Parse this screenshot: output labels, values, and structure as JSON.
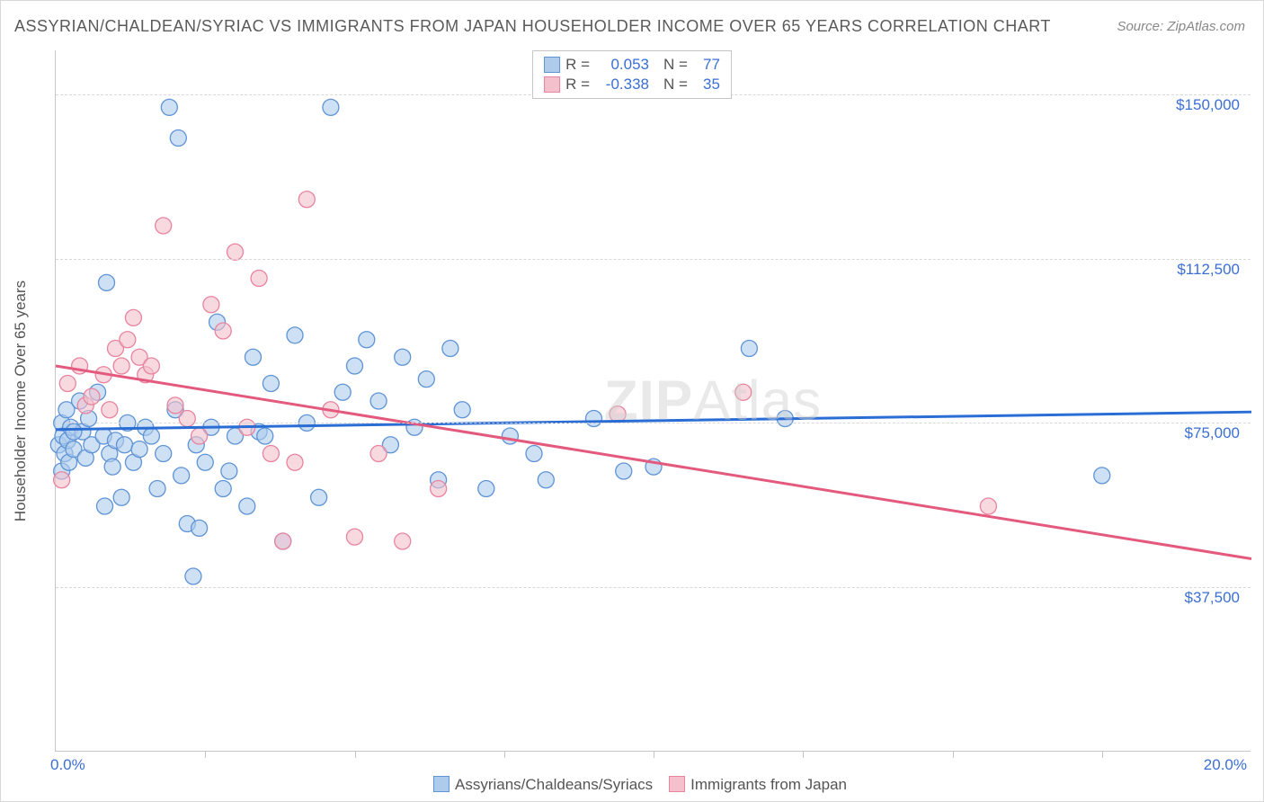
{
  "title": "ASSYRIAN/CHALDEAN/SYRIAC VS IMMIGRANTS FROM JAPAN HOUSEHOLDER INCOME OVER 65 YEARS CORRELATION CHART",
  "source": "Source: ZipAtlas.com",
  "watermark_zip": "ZIP",
  "watermark_atlas": "Atlas",
  "y_axis": {
    "label": "Householder Income Over 65 years",
    "ticks": [
      {
        "value": 37500,
        "label": "$37,500"
      },
      {
        "value": 75000,
        "label": "$75,000"
      },
      {
        "value": 112500,
        "label": "$112,500"
      },
      {
        "value": 150000,
        "label": "$150,000"
      }
    ],
    "min": 0,
    "max": 160000,
    "label_fontsize": 17,
    "label_color": "#555555",
    "tick_color": "#3b6fd4"
  },
  "x_axis": {
    "min": 0,
    "max": 20.0,
    "min_label": "0.0%",
    "max_label": "20.0%",
    "inner_ticks": [
      2.5,
      5.0,
      7.5,
      10.0,
      12.5,
      15.0,
      17.5
    ],
    "tick_color": "#3b6fd4"
  },
  "grid_color": "#d8d8d8",
  "background_color": "#ffffff",
  "series": [
    {
      "name": "Assyrians/Chaldeans/Syriacs",
      "fill": "#aecbec",
      "stroke": "#5f94d6",
      "fill_opacity": 0.6,
      "marker_radius": 9,
      "trend": {
        "y_at_xmin": 73500,
        "y_at_xmax": 77500,
        "color": "#2a6dd4",
        "width": 3
      },
      "stats": {
        "R_label": "R =",
        "R": "0.053",
        "N_label": "N =",
        "N": "77"
      },
      "points": [
        [
          0.05,
          70000
        ],
        [
          0.1,
          75000
        ],
        [
          0.1,
          64000
        ],
        [
          0.12,
          72000
        ],
        [
          0.15,
          68000
        ],
        [
          0.18,
          78000
        ],
        [
          0.2,
          71000
        ],
        [
          0.22,
          66000
        ],
        [
          0.25,
          74000
        ],
        [
          0.3,
          69000
        ],
        [
          0.4,
          80000
        ],
        [
          0.45,
          73000
        ],
        [
          0.5,
          67000
        ],
        [
          0.55,
          76000
        ],
        [
          0.6,
          70000
        ],
        [
          0.7,
          82000
        ],
        [
          0.8,
          72000
        ],
        [
          0.82,
          56000
        ],
        [
          0.85,
          107000
        ],
        [
          0.9,
          68000
        ],
        [
          0.95,
          65000
        ],
        [
          1.0,
          71000
        ],
        [
          1.1,
          58000
        ],
        [
          1.15,
          70000
        ],
        [
          1.2,
          75000
        ],
        [
          1.3,
          66000
        ],
        [
          1.4,
          69000
        ],
        [
          1.5,
          74000
        ],
        [
          1.6,
          72000
        ],
        [
          1.7,
          60000
        ],
        [
          1.8,
          68000
        ],
        [
          1.9,
          147000
        ],
        [
          2.0,
          78000
        ],
        [
          2.05,
          140000
        ],
        [
          2.1,
          63000
        ],
        [
          2.2,
          52000
        ],
        [
          2.3,
          40000
        ],
        [
          2.35,
          70000
        ],
        [
          2.4,
          51000
        ],
        [
          2.5,
          66000
        ],
        [
          2.6,
          74000
        ],
        [
          2.7,
          98000
        ],
        [
          2.8,
          60000
        ],
        [
          2.9,
          64000
        ],
        [
          3.0,
          72000
        ],
        [
          3.2,
          56000
        ],
        [
          3.3,
          90000
        ],
        [
          3.4,
          73000
        ],
        [
          3.5,
          72000
        ],
        [
          3.6,
          84000
        ],
        [
          3.8,
          48000
        ],
        [
          4.0,
          95000
        ],
        [
          4.2,
          75000
        ],
        [
          4.4,
          58000
        ],
        [
          4.6,
          147000
        ],
        [
          4.8,
          82000
        ],
        [
          5.0,
          88000
        ],
        [
          5.2,
          94000
        ],
        [
          5.4,
          80000
        ],
        [
          5.6,
          70000
        ],
        [
          5.8,
          90000
        ],
        [
          6.0,
          74000
        ],
        [
          6.2,
          85000
        ],
        [
          6.4,
          62000
        ],
        [
          6.6,
          92000
        ],
        [
          6.8,
          78000
        ],
        [
          7.2,
          60000
        ],
        [
          7.6,
          72000
        ],
        [
          8.0,
          68000
        ],
        [
          8.2,
          62000
        ],
        [
          9.0,
          76000
        ],
        [
          9.5,
          64000
        ],
        [
          10.0,
          65000
        ],
        [
          11.6,
          92000
        ],
        [
          12.2,
          76000
        ],
        [
          17.5,
          63000
        ],
        [
          0.3,
          73000
        ]
      ]
    },
    {
      "name": "Immigrants from Japan",
      "fill": "#f4c0cc",
      "stroke": "#e8849f",
      "fill_opacity": 0.6,
      "marker_radius": 9,
      "trend": {
        "y_at_xmin": 88000,
        "y_at_xmax": 44000,
        "color": "#e35a7e",
        "width": 3
      },
      "stats": {
        "R_label": "R =",
        "R": "-0.338",
        "N_label": "N =",
        "N": "35"
      },
      "points": [
        [
          0.1,
          62000
        ],
        [
          0.2,
          84000
        ],
        [
          0.4,
          88000
        ],
        [
          0.5,
          79000
        ],
        [
          0.6,
          81000
        ],
        [
          0.8,
          86000
        ],
        [
          0.9,
          78000
        ],
        [
          1.0,
          92000
        ],
        [
          1.1,
          88000
        ],
        [
          1.2,
          94000
        ],
        [
          1.3,
          99000
        ],
        [
          1.4,
          90000
        ],
        [
          1.5,
          86000
        ],
        [
          1.6,
          88000
        ],
        [
          1.8,
          120000
        ],
        [
          2.0,
          79000
        ],
        [
          2.2,
          76000
        ],
        [
          2.4,
          72000
        ],
        [
          2.6,
          102000
        ],
        [
          2.8,
          96000
        ],
        [
          3.0,
          114000
        ],
        [
          3.2,
          74000
        ],
        [
          3.4,
          108000
        ],
        [
          3.6,
          68000
        ],
        [
          3.8,
          48000
        ],
        [
          4.0,
          66000
        ],
        [
          4.2,
          126000
        ],
        [
          4.6,
          78000
        ],
        [
          5.0,
          49000
        ],
        [
          5.4,
          68000
        ],
        [
          5.8,
          48000
        ],
        [
          6.4,
          60000
        ],
        [
          9.4,
          77000
        ],
        [
          11.5,
          82000
        ],
        [
          15.6,
          56000
        ]
      ]
    }
  ],
  "bottom_legend": {
    "items": [
      {
        "swatch_fill": "#aecbec",
        "swatch_stroke": "#5f94d6",
        "label": "Assyrians/Chaldeans/Syriacs"
      },
      {
        "swatch_fill": "#f4c0cc",
        "swatch_stroke": "#e8849f",
        "label": "Immigrants from Japan"
      }
    ]
  }
}
